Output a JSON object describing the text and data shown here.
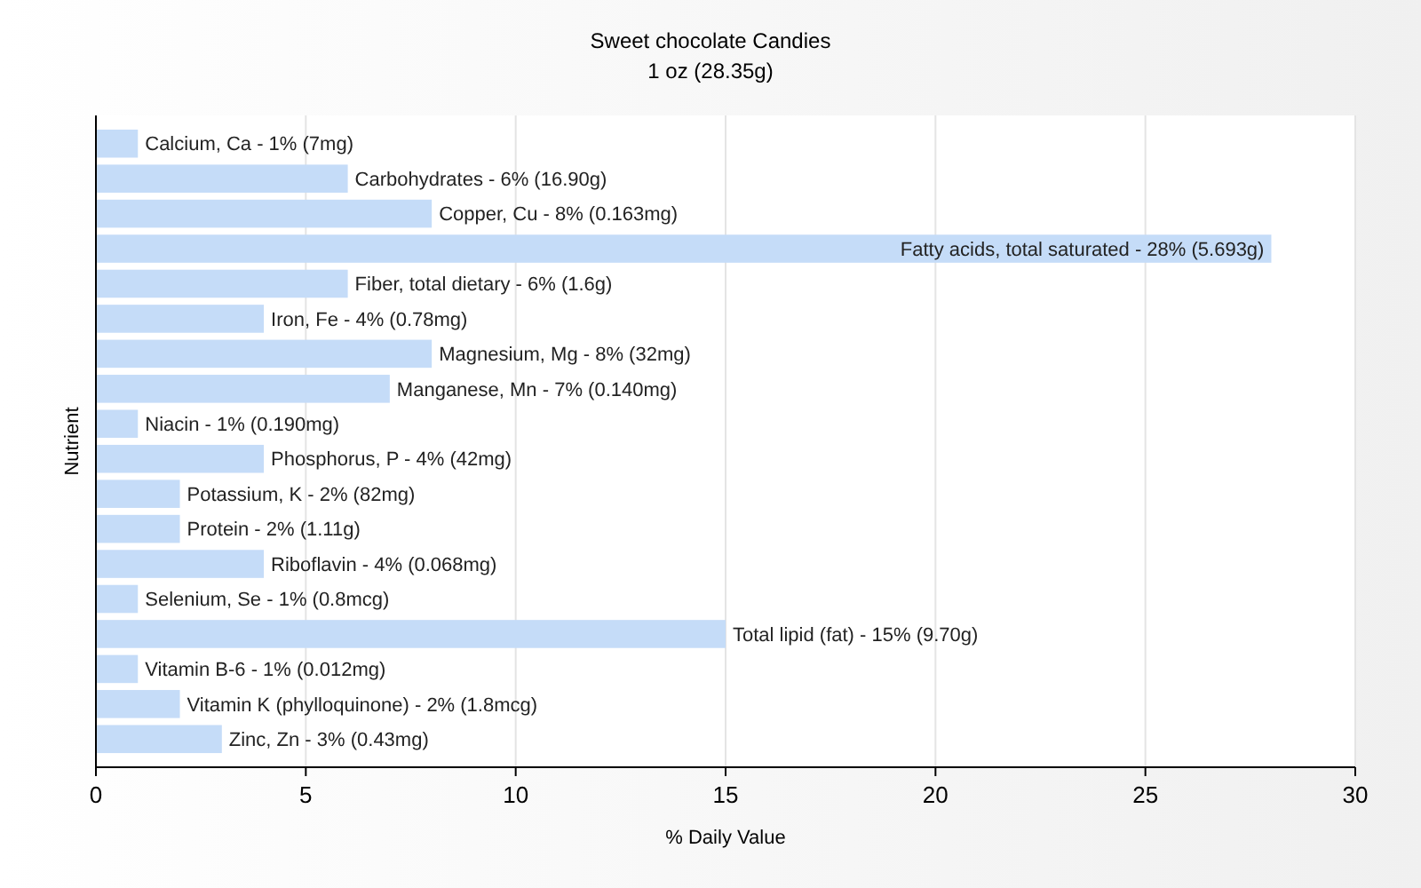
{
  "chart_data": {
    "type": "bar",
    "orientation": "horizontal",
    "title": "Sweet chocolate Candies",
    "subtitle": "1 oz (28.35g)",
    "xlabel": "% Daily Value",
    "ylabel": "Nutrient",
    "categories": [
      "Calcium, Ca - 1% (7mg)",
      "Carbohydrates - 6% (16.90g)",
      "Copper, Cu - 8% (0.163mg)",
      "Fatty acids, total saturated - 28% (5.693g)",
      "Fiber, total dietary - 6% (1.6g)",
      "Iron, Fe - 4% (0.78mg)",
      "Magnesium, Mg - 8% (32mg)",
      "Manganese, Mn - 7% (0.140mg)",
      "Niacin - 1% (0.190mg)",
      "Phosphorus, P - 4% (42mg)",
      "Potassium, K - 2% (82mg)",
      "Protein - 2% (1.11g)",
      "Riboflavin - 4% (0.068mg)",
      "Selenium, Se - 1% (0.8mcg)",
      "Total lipid (fat) - 15% (9.70g)",
      "Vitamin B-6 - 1% (0.012mg)",
      "Vitamin K (phylloquinone) - 2% (1.8mcg)",
      "Zinc, Zn - 3% (0.43mg)"
    ],
    "values": [
      1,
      6,
      8,
      28,
      6,
      4,
      8,
      7,
      1,
      4,
      2,
      2,
      4,
      1,
      15,
      1,
      2,
      3
    ],
    "color": "#c5dcf8",
    "xlim": [
      0,
      30
    ],
    "xticks": [
      0,
      5,
      10,
      15,
      20,
      25,
      30
    ],
    "grid": "x"
  }
}
